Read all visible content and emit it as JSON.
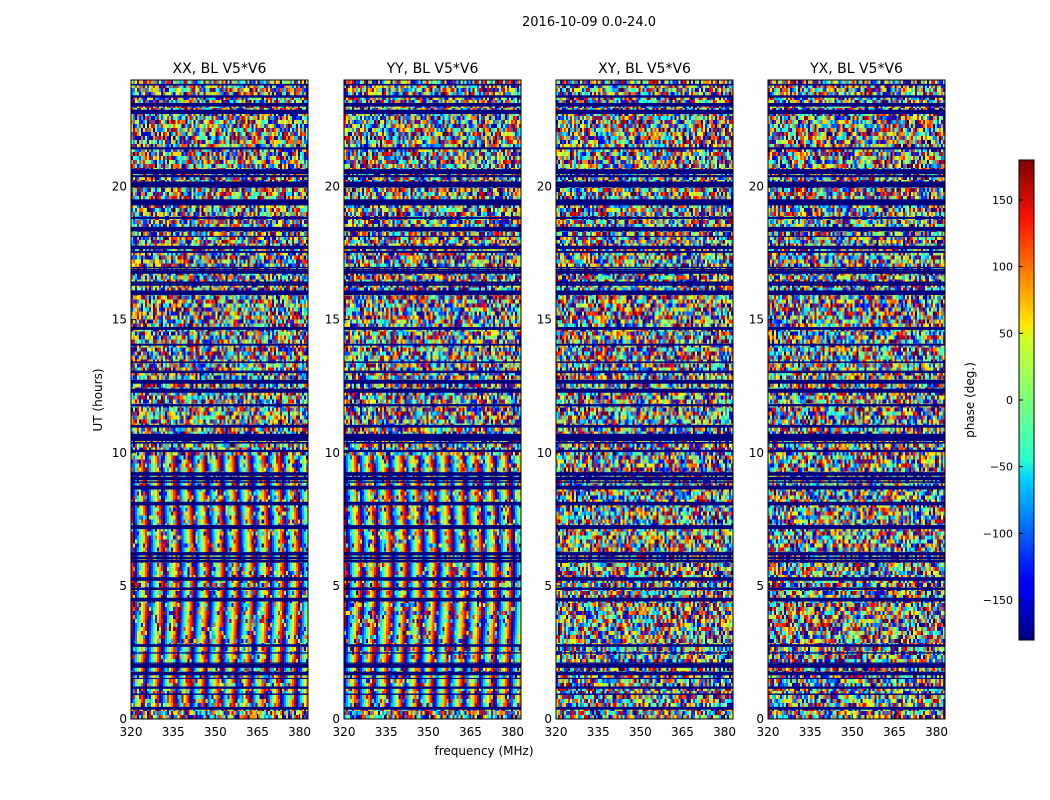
{
  "chart_data": {
    "type": "heatmap",
    "title": "2016-10-09 0.0-24.0",
    "xlabel": "frequency (MHz)",
    "ylabel": "UT (hours)",
    "xlim": [
      320,
      383
    ],
    "ylim": [
      0,
      24
    ],
    "xticks": [
      320,
      335,
      350,
      365,
      380
    ],
    "yticks": [
      0,
      5,
      10,
      15,
      20
    ],
    "panels": [
      {
        "title": "XX, BL V5*V6",
        "fringes_hours": [
          [
            0.5,
            9.9
          ]
        ]
      },
      {
        "title": "YY, BL V5*V6",
        "fringes_hours": [
          [
            0.5,
            9.9
          ]
        ]
      },
      {
        "title": "XY, BL V5*V6",
        "fringes_hours": []
      },
      {
        "title": "YX, BL V5*V6",
        "fringes_hours": []
      }
    ],
    "colorbar": {
      "label": "phase (deg.)",
      "range": [
        -180,
        180
      ],
      "ticks": [
        150,
        100,
        50,
        0,
        -50,
        -100,
        -150
      ],
      "colormap": "jet"
    }
  }
}
